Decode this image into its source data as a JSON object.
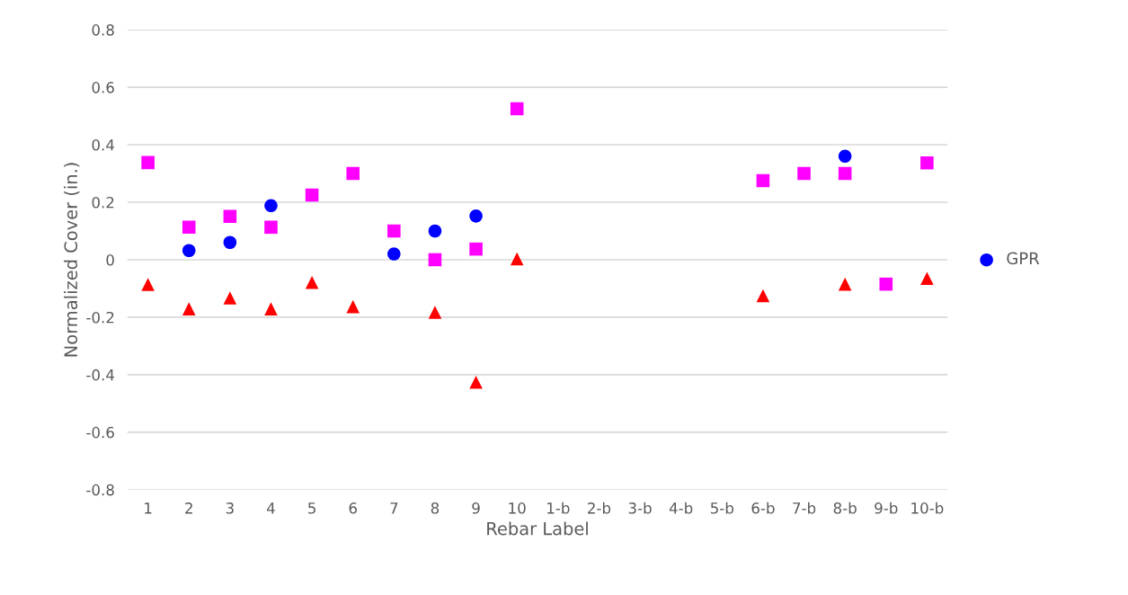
{
  "chart_data": {
    "type": "scatter",
    "xlabel": "Rebar Label",
    "ylabel": "Normalized Cover (in.)",
    "categories": [
      "1",
      "2",
      "3",
      "4",
      "5",
      "6",
      "7",
      "8",
      "9",
      "10",
      "1-b",
      "2-b",
      "3-b",
      "4-b",
      "5-b",
      "6-b",
      "7-b",
      "8-b",
      "9-b",
      "10-b"
    ],
    "series": [
      {
        "color": "#ff0000",
        "marker": "triangle",
        "values": [
          -0.086,
          -0.171,
          -0.133,
          -0.171,
          -0.079,
          -0.163,
          null,
          -0.183,
          -0.426,
          0.003,
          null,
          null,
          null,
          null,
          null,
          -0.125,
          null,
          -0.085,
          null,
          -0.065
        ]
      },
      {
        "color": "#ff00ff",
        "marker": "square",
        "values": [
          0.338,
          0.113,
          0.151,
          0.113,
          0.225,
          0.3,
          0.1,
          0.0,
          0.037,
          0.525,
          null,
          null,
          null,
          null,
          null,
          0.275,
          0.3,
          0.3,
          -0.085,
          0.337
        ]
      },
      {
        "name": "GPR",
        "color": "#0000ff",
        "marker": "circle",
        "values": [
          null,
          0.032,
          0.06,
          0.188,
          null,
          null,
          0.02,
          0.1,
          0.152,
          null,
          null,
          null,
          null,
          null,
          null,
          null,
          null,
          0.36,
          null,
          null
        ]
      }
    ],
    "ylim": [
      -0.8,
      0.8
    ],
    "yticks": [
      -0.8,
      -0.6,
      -0.4,
      -0.2,
      0,
      0.2,
      0.4,
      0.6,
      0.8
    ],
    "grid": "y",
    "legend": "right"
  }
}
